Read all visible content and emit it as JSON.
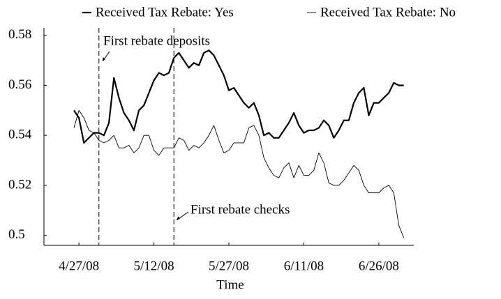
{
  "chart_data": {
    "type": "line",
    "x_label": "Time",
    "x": [
      "4/26/08",
      "4/27/08",
      "4/28/08",
      "4/29/08",
      "4/30/08",
      "5/1/08",
      "5/2/08",
      "5/3/08",
      "5/4/08",
      "5/5/08",
      "5/6/08",
      "5/7/08",
      "5/8/08",
      "5/9/08",
      "5/10/08",
      "5/11/08",
      "5/12/08",
      "5/13/08",
      "5/14/08",
      "5/15/08",
      "5/16/08",
      "5/17/08",
      "5/18/08",
      "5/19/08",
      "5/20/08",
      "5/21/08",
      "5/22/08",
      "5/23/08",
      "5/24/08",
      "5/25/08",
      "5/26/08",
      "5/27/08",
      "5/28/08",
      "5/29/08",
      "5/30/08",
      "5/31/08",
      "6/1/08",
      "6/2/08",
      "6/3/08",
      "6/4/08",
      "6/5/08",
      "6/6/08",
      "6/7/08",
      "6/8/08",
      "6/9/08",
      "6/10/08",
      "6/11/08",
      "6/12/08",
      "6/13/08",
      "6/14/08",
      "6/15/08",
      "6/16/08",
      "6/17/08",
      "6/18/08",
      "6/19/08",
      "6/20/08",
      "6/21/08",
      "6/22/08",
      "6/23/08",
      "6/24/08",
      "6/25/08",
      "6/26/08",
      "6/27/08",
      "6/28/08",
      "6/29/08",
      "6/30/08",
      "7/1/08"
    ],
    "series": [
      {
        "name": "Received Tax Rebate: Yes",
        "color": "#000000",
        "width": 2.2,
        "values": [
          0.55,
          0.547,
          0.537,
          0.539,
          0.541,
          0.541,
          0.54,
          0.545,
          0.563,
          0.555,
          0.549,
          0.546,
          0.542,
          0.55,
          0.552,
          0.557,
          0.562,
          0.565,
          0.564,
          0.565,
          0.571,
          0.573,
          0.57,
          0.567,
          0.569,
          0.568,
          0.573,
          0.574,
          0.572,
          0.568,
          0.564,
          0.558,
          0.559,
          0.556,
          0.553,
          0.551,
          0.553,
          0.548,
          0.54,
          0.541,
          0.539,
          0.539,
          0.542,
          0.545,
          0.549,
          0.544,
          0.541,
          0.542,
          0.542,
          0.543,
          0.546,
          0.544,
          0.539,
          0.542,
          0.546,
          0.546,
          0.553,
          0.557,
          0.559,
          0.548,
          0.553,
          0.553,
          0.555,
          0.557,
          0.561,
          0.56,
          0.56
        ]
      },
      {
        "name": "Received Tax Rebate: No",
        "color": "#000000",
        "width": 0.9,
        "values": [
          0.543,
          0.55,
          0.547,
          0.542,
          0.541,
          0.538,
          0.537,
          0.538,
          0.54,
          0.535,
          0.535,
          0.536,
          0.533,
          0.535,
          0.54,
          0.54,
          0.534,
          0.532,
          0.535,
          0.535,
          0.535,
          0.539,
          0.538,
          0.534,
          0.536,
          0.535,
          0.537,
          0.54,
          0.544,
          0.538,
          0.533,
          0.534,
          0.537,
          0.537,
          0.537,
          0.543,
          0.544,
          0.54,
          0.531,
          0.527,
          0.524,
          0.523,
          0.527,
          0.529,
          0.523,
          0.528,
          0.524,
          0.524,
          0.526,
          0.533,
          0.529,
          0.521,
          0.52,
          0.52,
          0.522,
          0.525,
          0.528,
          0.526,
          0.52,
          0.517,
          0.517,
          0.517,
          0.519,
          0.52,
          0.517,
          0.504,
          0.499
        ]
      }
    ],
    "xlim": [
      "4/20/08",
      "7/3/08"
    ],
    "xticks": [
      "4/27/08",
      "5/12/08",
      "5/27/08",
      "6/11/08",
      "6/26/08"
    ],
    "ylim": [
      0.496,
      0.583
    ],
    "yticks": [
      0.5,
      0.52,
      0.54,
      0.56,
      0.58
    ],
    "annotations": [
      {
        "text": "First rebate deposits",
        "x": "5/1/08"
      },
      {
        "text": "First rebate checks",
        "x": "5/16/08"
      }
    ]
  }
}
